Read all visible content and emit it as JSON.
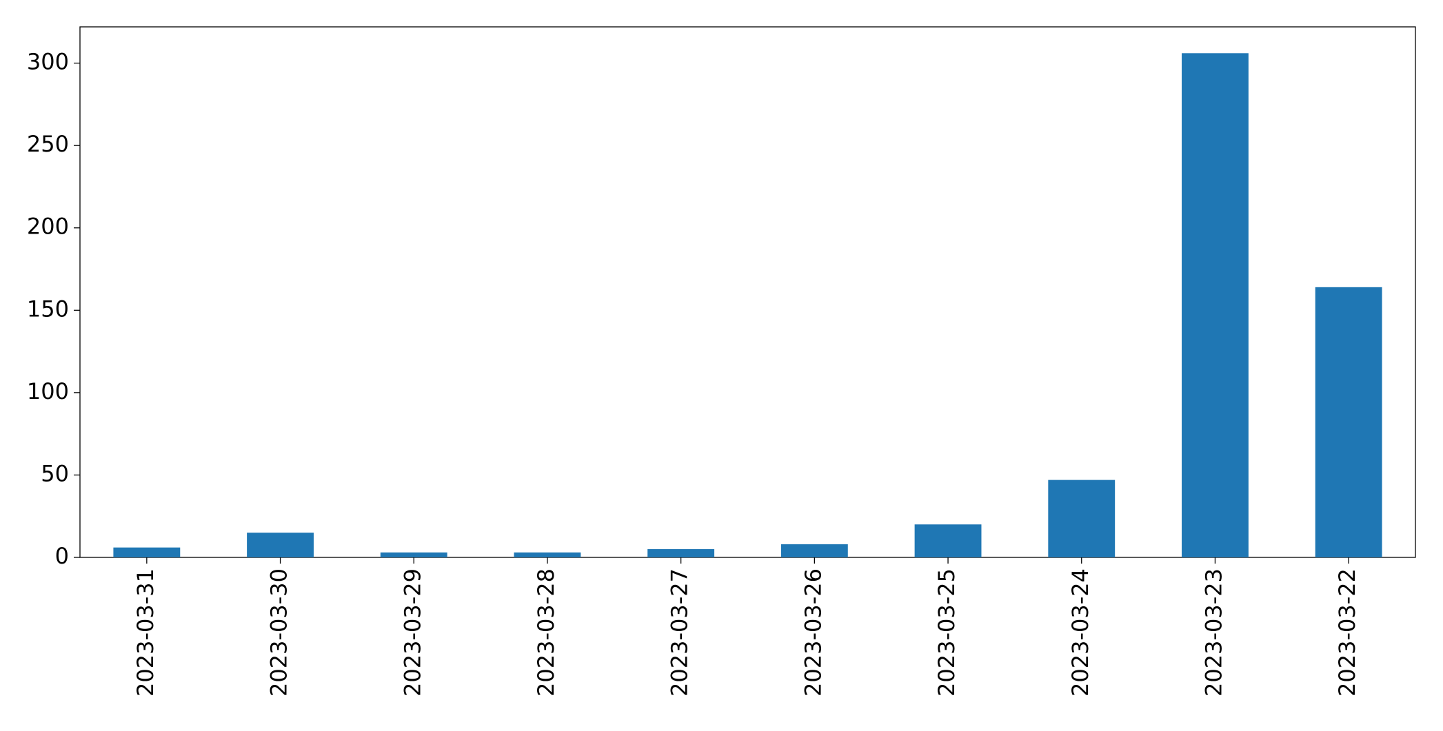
{
  "chart_data": {
    "type": "bar",
    "categories": [
      "2023-03-31",
      "2023-03-30",
      "2023-03-29",
      "2023-03-28",
      "2023-03-27",
      "2023-03-26",
      "2023-03-25",
      "2023-03-24",
      "2023-03-23",
      "2023-03-22"
    ],
    "values": [
      6,
      15,
      3,
      3,
      5,
      8,
      20,
      47,
      306,
      164
    ],
    "color": "#1f77b4",
    "ylim": [
      0,
      322
    ],
    "yticks": [
      0,
      50,
      100,
      150,
      200,
      250,
      300
    ],
    "grid": false
  }
}
